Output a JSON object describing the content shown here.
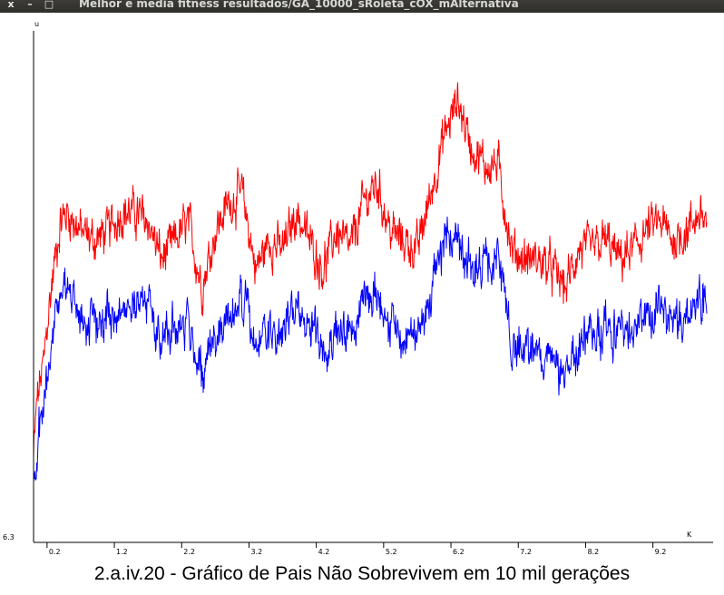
{
  "window": {
    "title": "Melhor e media fitness resultados/GA_10000_sRoleta_cOX_mAlternativa",
    "close_glyph": "x",
    "minimize_glyph": "–",
    "maximize_glyph": "□"
  },
  "caption": "2.a.iv.20 - Gráfico de Pais Não Sobrevivem em 10 mil gerações",
  "chart_data": {
    "type": "line",
    "title": "",
    "xlabel": "K",
    "ylabel": "u",
    "x_tick_labels": [
      "0.2",
      "1.2",
      "2.2",
      "3.2",
      "4.2",
      "5.2",
      "6.2",
      "7.2",
      "8.2",
      "9.2"
    ],
    "x_ticks_k": [
      0.2,
      1.2,
      2.2,
      3.2,
      4.2,
      5.2,
      6.2,
      7.2,
      8.2,
      9.2
    ],
    "y_tick_labels": [
      "6.3"
    ],
    "xlim_k": [
      0,
      10
    ],
    "grid": false,
    "series": [
      {
        "color": "#ff0000",
        "x": [
          0,
          0.05,
          0.1,
          0.15,
          0.2,
          0.3,
          0.4,
          0.5,
          0.7,
          0.9,
          1.1,
          1.3,
          1.5,
          1.7,
          1.9,
          2.1,
          2.3,
          2.5,
          2.7,
          2.9,
          3.1,
          3.3,
          3.5,
          3.7,
          3.9,
          4.1,
          4.3,
          4.5,
          4.7,
          4.9,
          5.1,
          5.3,
          5.5,
          5.7,
          5.9,
          6.1,
          6.3,
          6.5,
          6.7,
          6.9,
          7.1,
          7.3,
          7.5,
          7.7,
          7.9,
          8.1,
          8.3,
          8.5,
          8.7,
          8.9,
          9.1,
          9.3,
          9.5,
          9.7,
          9.9,
          10.0
        ],
        "y": [
          7.2,
          7.8,
          8.0,
          8.2,
          8.6,
          9.2,
          9.7,
          9.8,
          9.6,
          9.5,
          9.6,
          9.8,
          9.8,
          9.7,
          9.3,
          9.5,
          9.7,
          9.0,
          9.6,
          9.9,
          10.0,
          9.2,
          9.5,
          9.4,
          9.8,
          9.5,
          9.2,
          9.6,
          9.4,
          9.9,
          10.1,
          9.6,
          9.5,
          9.4,
          10.0,
          10.6,
          11.0,
          10.5,
          10.3,
          10.3,
          9.4,
          9.3,
          9.3,
          9.2,
          9.0,
          9.4,
          9.4,
          9.5,
          9.3,
          9.4,
          9.6,
          9.7,
          9.5,
          9.6,
          9.8,
          9.7
        ]
      },
      {
        "color": "#0000ff",
        "x": [
          0,
          0.05,
          0.1,
          0.15,
          0.2,
          0.3,
          0.4,
          0.5,
          0.7,
          0.9,
          1.1,
          1.3,
          1.5,
          1.7,
          1.9,
          2.1,
          2.3,
          2.5,
          2.7,
          2.9,
          3.1,
          3.3,
          3.5,
          3.7,
          3.9,
          4.1,
          4.3,
          4.5,
          4.7,
          4.9,
          5.1,
          5.3,
          5.5,
          5.7,
          5.9,
          6.1,
          6.3,
          6.5,
          6.7,
          6.9,
          7.1,
          7.3,
          7.5,
          7.7,
          7.9,
          8.1,
          8.3,
          8.5,
          8.7,
          8.9,
          9.1,
          9.3,
          9.5,
          9.7,
          9.9,
          10.0
        ],
        "y": [
          6.8,
          7.3,
          7.5,
          7.7,
          8.1,
          8.6,
          9.0,
          9.0,
          8.7,
          8.6,
          8.7,
          8.8,
          8.9,
          8.8,
          8.5,
          8.6,
          8.6,
          8.1,
          8.5,
          8.7,
          8.9,
          8.4,
          8.5,
          8.5,
          8.8,
          8.6,
          8.4,
          8.6,
          8.5,
          8.9,
          9.0,
          8.6,
          8.5,
          8.5,
          8.9,
          9.5,
          9.6,
          9.2,
          9.2,
          9.3,
          8.4,
          8.4,
          8.3,
          8.2,
          8.0,
          8.4,
          8.5,
          8.6,
          8.5,
          8.6,
          8.7,
          8.8,
          8.7,
          8.7,
          8.9,
          8.9
        ]
      }
    ]
  }
}
